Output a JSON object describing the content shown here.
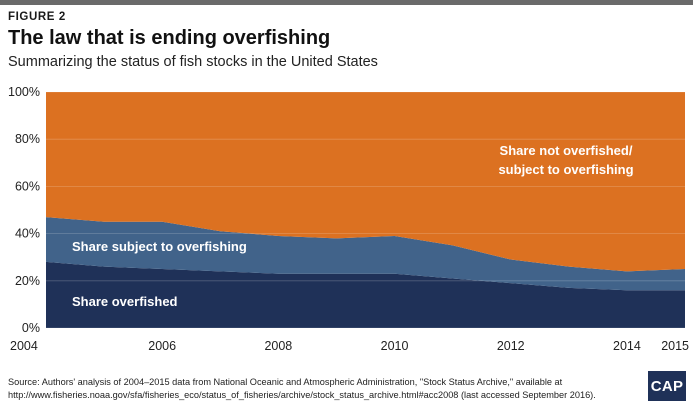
{
  "header": {
    "figure_label": "FIGURE 2",
    "title": "The law that is ending overfishing",
    "subtitle": "Summarizing the status of fish stocks in the United States"
  },
  "colors": {
    "overfished": "#1f3158",
    "subject_to_overfishing": "#41638a",
    "not_overfished": "#dc7121",
    "topbar": "#6a6a6a",
    "text": "#1a1a1a"
  },
  "chart_data": {
    "type": "area",
    "stacked": true,
    "x": [
      2004,
      2005,
      2006,
      2007,
      2008,
      2009,
      2010,
      2011,
      2012,
      2013,
      2014,
      2015
    ],
    "x_tick_labels": [
      "2004",
      "2006",
      "2008",
      "2010",
      "2012",
      "2014",
      "2015"
    ],
    "y_tick_labels": [
      "0%",
      "20%",
      "40%",
      "60%",
      "80%",
      "100%"
    ],
    "ylim": [
      0,
      100
    ],
    "grid": true,
    "series": [
      {
        "name": "Share overfished",
        "values": [
          28,
          26,
          25,
          24,
          23,
          23,
          23,
          21,
          19,
          17,
          16,
          16
        ]
      },
      {
        "name": "Share subject to overfishing",
        "values": [
          19,
          19,
          20,
          17,
          16,
          15,
          16,
          14,
          10,
          9,
          8,
          9
        ]
      },
      {
        "name": "Share not overfished/ subject to overfishing",
        "values": [
          53,
          55,
          55,
          59,
          61,
          62,
          61,
          65,
          71,
          74,
          76,
          75
        ]
      }
    ],
    "annotations": {
      "overfished": "Share overfished",
      "subject": "Share subject to overfishing",
      "not_overfished_line1": "Share not overfished/",
      "not_overfished_line2": "subject to overfishing"
    }
  },
  "footer": {
    "source": "Source: Authors' analysis of 2004–2015 data from National Oceanic and Atmospheric Administration, \"Stock Status Archive,\" available at http://www.fisheries.noaa.gov/sfa/fisheries_eco/status_of_fisheries/archive/stock_status_archive.html#acc2008 (last accessed September 2016).",
    "logo": "CAP"
  }
}
